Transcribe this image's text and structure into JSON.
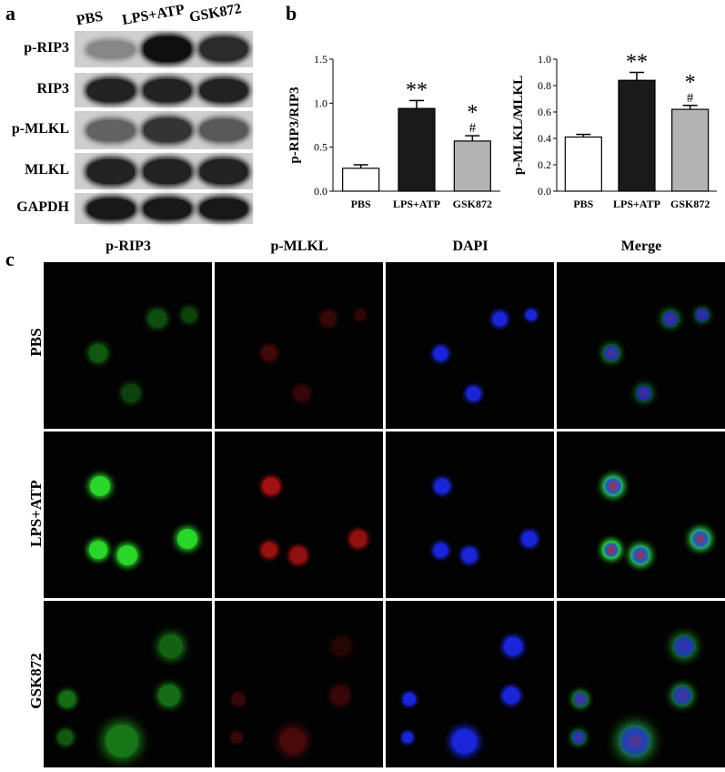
{
  "panels": {
    "a": "a",
    "b": "b",
    "c": "c"
  },
  "western_blot": {
    "lanes": [
      "PBS",
      "LPS+ATP",
      "GSK872"
    ],
    "rows": [
      "p-RIP3",
      "RIP3",
      "p-MLKL",
      "MLKL",
      "GAPDH"
    ],
    "intensity": [
      [
        0.35,
        1.0,
        0.85
      ],
      [
        0.9,
        0.9,
        0.9
      ],
      [
        0.55,
        0.8,
        0.6
      ],
      [
        0.9,
        0.9,
        0.9
      ],
      [
        0.95,
        0.95,
        0.95
      ]
    ]
  },
  "chart_data": [
    {
      "type": "bar",
      "categories": [
        "PBS",
        "LPS+ATP",
        "GSK872"
      ],
      "values": [
        0.26,
        0.94,
        0.57
      ],
      "errors": [
        0.04,
        0.09,
        0.06
      ],
      "ylabel": "p-RIP3/RIP3",
      "ylim": [
        0,
        1.5
      ],
      "yticks": [
        "0.0",
        "0.5",
        "1.0",
        "1.5"
      ],
      "bar_colors": [
        "#ffffff",
        "#1a1a1a",
        "#b3b3b3"
      ],
      "annotations": [
        [
          "",
          ""
        ],
        [
          "**",
          ""
        ],
        [
          "*",
          "#"
        ]
      ]
    },
    {
      "type": "bar",
      "categories": [
        "PBS",
        "LPS+ATP",
        "GSK872"
      ],
      "values": [
        0.41,
        0.84,
        0.62
      ],
      "errors": [
        0.02,
        0.06,
        0.03
      ],
      "ylabel": "p-MLKL/MLKL",
      "ylim": [
        0,
        1.0
      ],
      "yticks": [
        "0.0",
        "0.2",
        "0.4",
        "0.6",
        "0.8",
        "1.0"
      ],
      "bar_colors": [
        "#ffffff",
        "#1a1a1a",
        "#b3b3b3"
      ],
      "annotations": [
        [
          "",
          ""
        ],
        [
          "**",
          ""
        ],
        [
          "*",
          "#"
        ]
      ]
    }
  ],
  "microscopy": {
    "columns": [
      "p-RIP3",
      "p-MLKL",
      "DAPI",
      "Merge"
    ],
    "rows": [
      "PBS",
      "LPS+ATP",
      "GSK872"
    ],
    "channel_colors": {
      "green": "#29d629",
      "red": "#e01818",
      "blue": "#1f2bff"
    }
  }
}
